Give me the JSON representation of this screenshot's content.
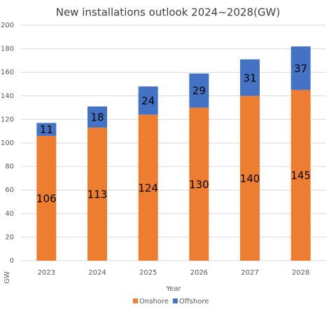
{
  "chart_data": {
    "type": "stacked_bar",
    "title": "New installations outlook 2024~2028(GW)",
    "x_label": "Year",
    "y_label": "GW",
    "categories": [
      "2023",
      "2024",
      "2025",
      "2026",
      "2027",
      "2028"
    ],
    "series": [
      {
        "name": "Onshore",
        "color": "#ed7d31",
        "values": [
          106,
          113,
          124,
          130,
          140,
          145
        ]
      },
      {
        "name": "Offshore",
        "color": "#4472c4",
        "values": [
          11,
          18,
          24,
          29,
          31,
          37
        ]
      }
    ],
    "ylim": [
      0,
      200
    ],
    "yticks": [
      0,
      20,
      40,
      60,
      80,
      100,
      120,
      140,
      160,
      180,
      200
    ],
    "grid": true,
    "legend": "bottom"
  }
}
